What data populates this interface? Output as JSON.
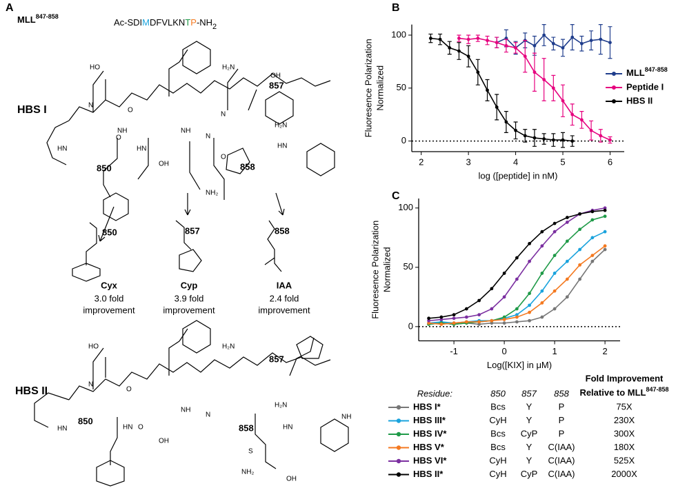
{
  "panel_a": {
    "panel_label": "A",
    "peptide": "MLL",
    "peptide_sup": "847-858",
    "sequence": [
      "Ac-SDI",
      "M",
      "DFVLKN",
      "T",
      "P",
      "-NH",
      "2"
    ],
    "hbs1_title": "HBS I",
    "hbs2_title": "HBS II",
    "hbs1_atoms": [
      "HO",
      "O",
      "N",
      "O",
      "HN",
      "HN",
      "OH",
      "NH",
      "N",
      "O",
      "H₂N",
      "OH",
      "H₂N",
      "HN",
      "N",
      "NH₂",
      "NH"
    ],
    "hbs2_atoms": [
      "HO",
      "O",
      "N",
      "HN",
      "HN",
      "OH",
      "NH",
      "N",
      "H₂N",
      "H₂N",
      "HN",
      "NH",
      "NH₂",
      "OH",
      "O",
      "S"
    ],
    "residue_labels": {
      "hbs1": [
        "850",
        "857",
        "858"
      ],
      "hbs2": [
        "850",
        "857",
        "858"
      ]
    },
    "residue_colors": [
      "#1aa3dd",
      "#1f9a48",
      "#f47920"
    ],
    "mods": [
      {
        "label": "850",
        "name": "Cyx",
        "fold": "3.0 fold",
        "improvement": "improvement"
      },
      {
        "label": "857",
        "name": "Cyp",
        "fold": "3.9 fold",
        "improvement": "improvement"
      },
      {
        "label": "858",
        "name": "IAA",
        "fold": "2.4 fold",
        "improvement": "improvement"
      }
    ]
  },
  "chart_data": [
    {
      "type": "line",
      "panel_label": "B",
      "x_label": "log ([peptide] in nM)",
      "y_label": [
        "Fluoresence Polarization",
        "Normalized"
      ],
      "xlim": [
        1.8,
        6.3
      ],
      "xticks": [
        2,
        3,
        4,
        5,
        6
      ],
      "ylim": [
        -10,
        110
      ],
      "yticks": [
        0,
        50,
        100
      ],
      "zero_line": true,
      "legend": "right",
      "series": [
        {
          "name": "MLL",
          "name_sup": "847-858",
          "color": "#1f3d8c",
          "x": [
            3.6,
            3.8,
            4.0,
            4.2,
            4.4,
            4.6,
            4.8,
            5.0,
            5.2,
            5.4,
            5.6,
            5.8,
            6.0
          ],
          "values": [
            93,
            97,
            88,
            95,
            90,
            100,
            92,
            88,
            98,
            92,
            95,
            96,
            93
          ],
          "errors": [
            5,
            8,
            6,
            7,
            9,
            10,
            6,
            8,
            12,
            7,
            9,
            14,
            15
          ]
        },
        {
          "name": "Peptide I",
          "color": "#e6007e",
          "x": [
            2.8,
            3.0,
            3.2,
            3.4,
            3.6,
            3.8,
            4.0,
            4.2,
            4.4,
            4.6,
            4.8,
            5.0,
            5.2,
            5.4,
            5.6,
            5.8,
            6.0
          ],
          "values": [
            97,
            96,
            97,
            95,
            93,
            90,
            88,
            80,
            65,
            58,
            50,
            38,
            25,
            20,
            10,
            5,
            1
          ],
          "errors": [
            3,
            4,
            3,
            4,
            5,
            6,
            5,
            15,
            18,
            20,
            12,
            15,
            10,
            8,
            9,
            6,
            3
          ]
        },
        {
          "name": "HBS II",
          "color": "#000000",
          "x": [
            2.2,
            2.4,
            2.6,
            2.8,
            3.0,
            3.2,
            3.4,
            3.6,
            3.8,
            4.0,
            4.2,
            4.4,
            4.6,
            4.8,
            5.0,
            5.2
          ],
          "values": [
            97,
            96,
            88,
            85,
            80,
            65,
            48,
            32,
            18,
            10,
            5,
            3,
            2,
            1,
            1,
            0
          ],
          "errors": [
            4,
            5,
            6,
            8,
            10,
            12,
            10,
            12,
            10,
            8,
            6,
            8,
            5,
            6,
            7,
            5
          ]
        }
      ]
    },
    {
      "type": "line",
      "panel_label": "C",
      "x_label": "Log([KIX] in μM)",
      "y_label": [
        "Fluoresence Polarization",
        "Normalized"
      ],
      "xlim": [
        -1.7,
        2.3
      ],
      "xticks": [
        -1,
        0,
        1,
        2
      ],
      "ylim": [
        -12,
        108
      ],
      "yticks": [
        0,
        50,
        100
      ],
      "zero_line": true,
      "series": [
        {
          "name": "HBS I*",
          "color": "#777777",
          "x": [
            -1.5,
            -1.25,
            -1.0,
            -0.75,
            -0.5,
            -0.25,
            0.0,
            0.25,
            0.5,
            0.75,
            1.0,
            1.25,
            1.5,
            1.75,
            2.0
          ],
          "values": [
            2,
            3,
            2,
            3,
            2,
            3,
            3,
            4,
            5,
            8,
            15,
            25,
            40,
            55,
            65
          ]
        },
        {
          "name": "HBS III*",
          "color": "#1aa3dd",
          "x": [
            -1.5,
            -1.25,
            -1.0,
            -0.75,
            -0.5,
            -0.25,
            0.0,
            0.25,
            0.5,
            0.75,
            1.0,
            1.25,
            1.5,
            1.75,
            2.0
          ],
          "values": [
            3,
            4,
            3,
            4,
            5,
            5,
            7,
            10,
            18,
            30,
            45,
            55,
            65,
            75,
            80
          ]
        },
        {
          "name": "HBS IV*",
          "color": "#1f9a48",
          "x": [
            -1.5,
            -1.25,
            -1.0,
            -0.75,
            -0.5,
            -0.25,
            0.0,
            0.25,
            0.5,
            0.75,
            1.0,
            1.25,
            1.5,
            1.75,
            2.0
          ],
          "values": [
            2,
            3,
            2,
            3,
            4,
            5,
            8,
            15,
            28,
            45,
            60,
            72,
            82,
            90,
            93
          ]
        },
        {
          "name": "HBS V*",
          "color": "#f47920",
          "x": [
            -1.5,
            -1.25,
            -1.0,
            -0.75,
            -0.5,
            -0.25,
            0.0,
            0.25,
            0.5,
            0.75,
            1.0,
            1.25,
            1.5,
            1.75,
            2.0
          ],
          "values": [
            3,
            2,
            3,
            4,
            4,
            5,
            6,
            8,
            12,
            20,
            30,
            40,
            52,
            60,
            68
          ]
        },
        {
          "name": "HBS VI*",
          "color": "#7b2fa0",
          "x": [
            -1.5,
            -1.25,
            -1.0,
            -0.75,
            -0.5,
            -0.25,
            0.0,
            0.25,
            0.5,
            0.75,
            1.0,
            1.25,
            1.5,
            1.75,
            2.0
          ],
          "values": [
            5,
            6,
            7,
            8,
            10,
            15,
            25,
            40,
            55,
            68,
            80,
            88,
            95,
            98,
            100
          ]
        },
        {
          "name": "HBS II*",
          "color": "#000000",
          "x": [
            -1.5,
            -1.25,
            -1.0,
            -0.75,
            -0.5,
            -0.25,
            0.0,
            0.25,
            0.5,
            0.75,
            1.0,
            1.25,
            1.5,
            1.75,
            2.0
          ],
          "values": [
            7,
            8,
            10,
            15,
            22,
            32,
            45,
            58,
            70,
            80,
            87,
            92,
            95,
            97,
            98
          ]
        }
      ]
    }
  ],
  "table": {
    "header": [
      "Residue:",
      "850",
      "857",
      "858"
    ],
    "fold_header": "Fold Improvement",
    "fold_sub": "Relative to MLL",
    "fold_sub_sup": "847-858",
    "cell_colors": {
      "CyH": "#1aa3dd",
      "CyP": "#1f9a48",
      "C(IAA)": "#f47920"
    },
    "rows": [
      [
        "Bcs",
        "Y",
        "P",
        "75X"
      ],
      [
        "CyH",
        "Y",
        "P",
        "230X"
      ],
      [
        "Bcs",
        "CyP",
        "P",
        "300X"
      ],
      [
        "Bcs",
        "Y",
        "C(IAA)",
        "180X"
      ],
      [
        "CyH",
        "Y",
        "C(IAA)",
        "525X"
      ],
      [
        "CyH",
        "CyP",
        "C(IAA)",
        "2000X"
      ]
    ]
  }
}
